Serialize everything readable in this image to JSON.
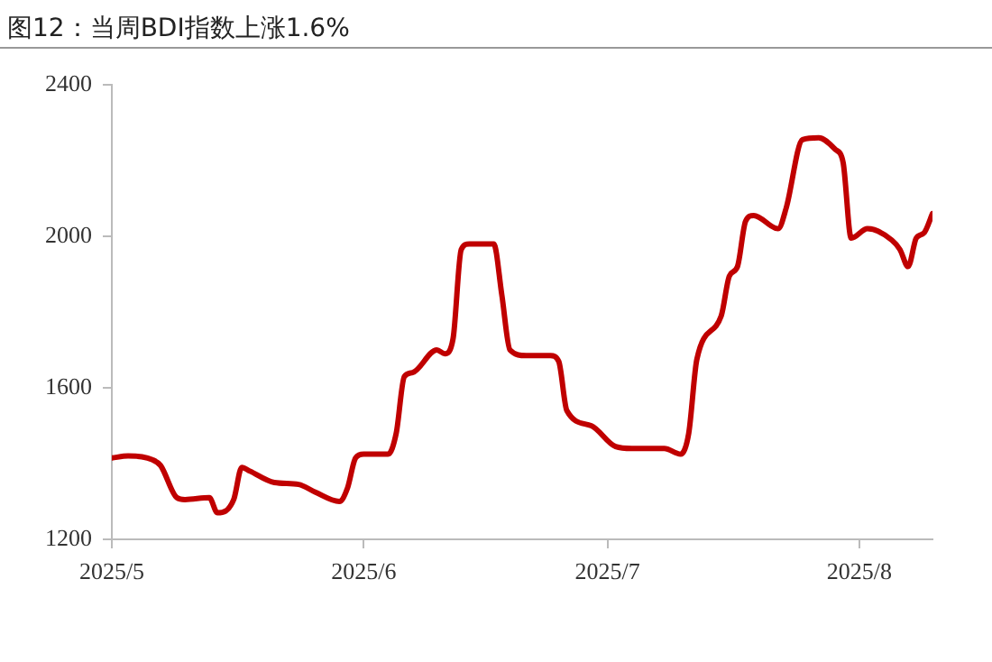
{
  "chart_data": {
    "type": "line",
    "title": "图12：当周BDI指数上涨1.6%",
    "x": [
      "2025-05-01",
      "2025-05-03",
      "2025-05-06",
      "2025-05-07",
      "2025-05-09",
      "2025-05-10",
      "2025-05-13",
      "2025-05-14",
      "2025-05-16",
      "2025-05-17",
      "2025-05-18",
      "2025-05-21",
      "2025-05-24",
      "2025-05-26",
      "2025-05-29",
      "2025-05-30",
      "2025-05-31",
      "2025-06-01",
      "2025-06-04",
      "2025-06-05",
      "2025-06-06",
      "2025-06-07",
      "2025-06-10",
      "2025-06-11",
      "2025-06-12",
      "2025-06-13",
      "2025-06-14",
      "2025-06-17",
      "2025-06-18",
      "2025-06-19",
      "2025-06-21",
      "2025-06-24",
      "2025-06-25",
      "2025-06-26",
      "2025-06-29",
      "2025-07-02",
      "2025-07-04",
      "2025-07-08",
      "2025-07-10",
      "2025-07-11",
      "2025-07-12",
      "2025-07-15",
      "2025-07-16",
      "2025-07-17",
      "2025-07-18",
      "2025-07-19",
      "2025-07-22",
      "2025-07-23",
      "2025-07-25",
      "2025-07-27",
      "2025-07-29",
      "2025-07-30",
      "2025-07-31",
      "2025-08-02",
      "2025-08-05",
      "2025-08-06",
      "2025-08-07",
      "2025-08-08",
      "2025-08-09",
      "2025-08-10"
    ],
    "series": [
      {
        "color": "#c00000",
        "values": [
          1415,
          1420,
          1410,
          1395,
          1310,
          1305,
          1310,
          1270,
          1305,
          1390,
          1380,
          1350,
          1345,
          1325,
          1300,
          1335,
          1415,
          1425,
          1425,
          1480,
          1630,
          1640,
          1700,
          1690,
          1730,
          1965,
          1980,
          1980,
          1845,
          1700,
          1685,
          1685,
          1670,
          1540,
          1500,
          1445,
          1440,
          1440,
          1425,
          1480,
          1675,
          1790,
          1895,
          1920,
          2040,
          2055,
          2020,
          2075,
          2255,
          2260,
          2230,
          2195,
          1995,
          2020,
          1990,
          1965,
          1920,
          1995,
          2010,
          2060
        ]
      }
    ],
    "xlim": [
      "2025-05-01",
      "2025-08-10"
    ],
    "xticks": [
      {
        "value": "2025-05-01",
        "label": "2025/5"
      },
      {
        "value": "2025-06-01",
        "label": "2025/6"
      },
      {
        "value": "2025-07-01",
        "label": "2025/7"
      },
      {
        "value": "2025-08-01",
        "label": "2025/8"
      }
    ],
    "ylim": [
      1200,
      2400
    ],
    "yticks": [
      1200,
      1600,
      2000,
      2400
    ],
    "grid": false,
    "legend": false,
    "marker": "none",
    "line_style": "solid"
  }
}
